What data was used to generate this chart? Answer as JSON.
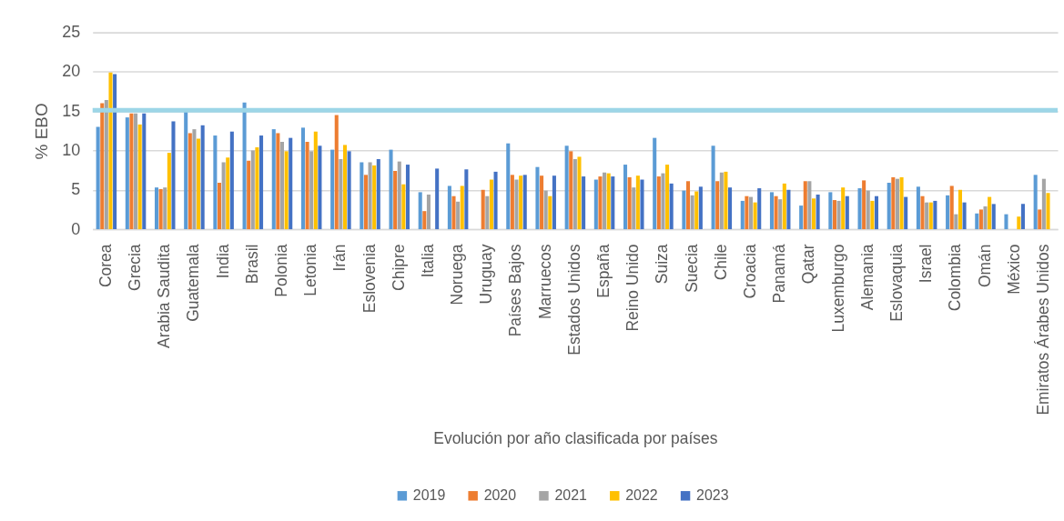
{
  "chart_data": {
    "type": "bar",
    "xlabel": "Evolución por año clasificada por países",
    "ylabel": "% EBO",
    "categories": [
      "Corea",
      "Grecia",
      "Arabia Saudita",
      "Guatemala",
      "India",
      "Brasil",
      "Polonia",
      "Letonia",
      "Irán",
      "Eslovenia",
      "Chipre",
      "Italia",
      "Noruega",
      "Uruguay",
      "Países Bajos",
      "Marruecos",
      "Estados Unidos",
      "España",
      "Reino Unido",
      "Suiza",
      "Suecia",
      "Chile",
      "Croacia",
      "Panamá",
      "Qatar",
      "Luxemburgo",
      "Alemania",
      "Eslovaquia",
      "Israel",
      "Colombia",
      "Omán",
      "México",
      "Emiratos Árabes Unidos"
    ],
    "series": [
      {
        "name": "2019",
        "color": "#5b9bd5",
        "values": [
          13.0,
          14.2,
          5.3,
          14.9,
          11.9,
          16.1,
          12.7,
          12.9,
          10.1,
          8.5,
          10.1,
          4.7,
          5.5,
          null,
          10.9,
          7.9,
          10.6,
          6.3,
          8.2,
          11.6,
          4.9,
          10.6,
          3.6,
          4.7,
          3.0,
          4.7,
          5.2,
          5.9,
          5.4,
          4.3,
          2.0,
          1.9,
          6.9
        ]
      },
      {
        "name": "2020",
        "color": "#ed7d31",
        "values": [
          16.0,
          14.7,
          5.1,
          12.2,
          5.9,
          8.7,
          12.2,
          11.1,
          14.5,
          6.9,
          7.4,
          2.3,
          4.2,
          5.0,
          6.9,
          6.8,
          9.9,
          6.7,
          6.6,
          6.7,
          6.1,
          6.1,
          4.2,
          4.2,
          6.1,
          3.7,
          6.2,
          6.6,
          4.2,
          5.5,
          2.5,
          null,
          2.5
        ]
      },
      {
        "name": "2021",
        "color": "#a5a5a5",
        "values": [
          16.4,
          14.7,
          5.3,
          12.7,
          8.5,
          10.0,
          11.1,
          9.9,
          8.9,
          8.5,
          8.6,
          4.4,
          3.5,
          4.2,
          6.3,
          4.9,
          8.9,
          7.2,
          5.3,
          7.1,
          4.3,
          7.2,
          4.1,
          3.8,
          6.1,
          3.6,
          4.9,
          6.4,
          3.4,
          1.9,
          2.9,
          null,
          6.4
        ]
      },
      {
        "name": "2022",
        "color": "#ffc000",
        "values": [
          19.9,
          13.3,
          9.7,
          11.5,
          9.1,
          10.4,
          9.9,
          12.4,
          10.7,
          8.1,
          5.7,
          null,
          5.5,
          6.3,
          6.8,
          4.2,
          9.2,
          7.1,
          6.8,
          8.2,
          4.8,
          7.3,
          3.4,
          5.8,
          3.9,
          5.3,
          3.6,
          6.6,
          3.4,
          5.0,
          4.1,
          1.6,
          4.6
        ]
      },
      {
        "name": "2023",
        "color": "#4472c4",
        "values": [
          19.7,
          14.7,
          13.7,
          13.2,
          12.4,
          11.9,
          11.6,
          10.6,
          9.9,
          8.9,
          8.2,
          7.7,
          7.6,
          7.3,
          6.9,
          6.8,
          6.7,
          6.7,
          6.3,
          5.8,
          5.4,
          5.3,
          5.2,
          5.0,
          4.4,
          4.2,
          4.2,
          4.1,
          3.6,
          3.4,
          3.2,
          3.2,
          null
        ]
      }
    ],
    "ylim": [
      0,
      25
    ],
    "yticks": [
      0,
      5,
      10,
      15,
      20,
      25
    ],
    "grid": "y",
    "legend": "bottom",
    "ref_lines": [
      {
        "axis": "y",
        "value": 15.1,
        "color": "#9dd6e7"
      }
    ]
  }
}
